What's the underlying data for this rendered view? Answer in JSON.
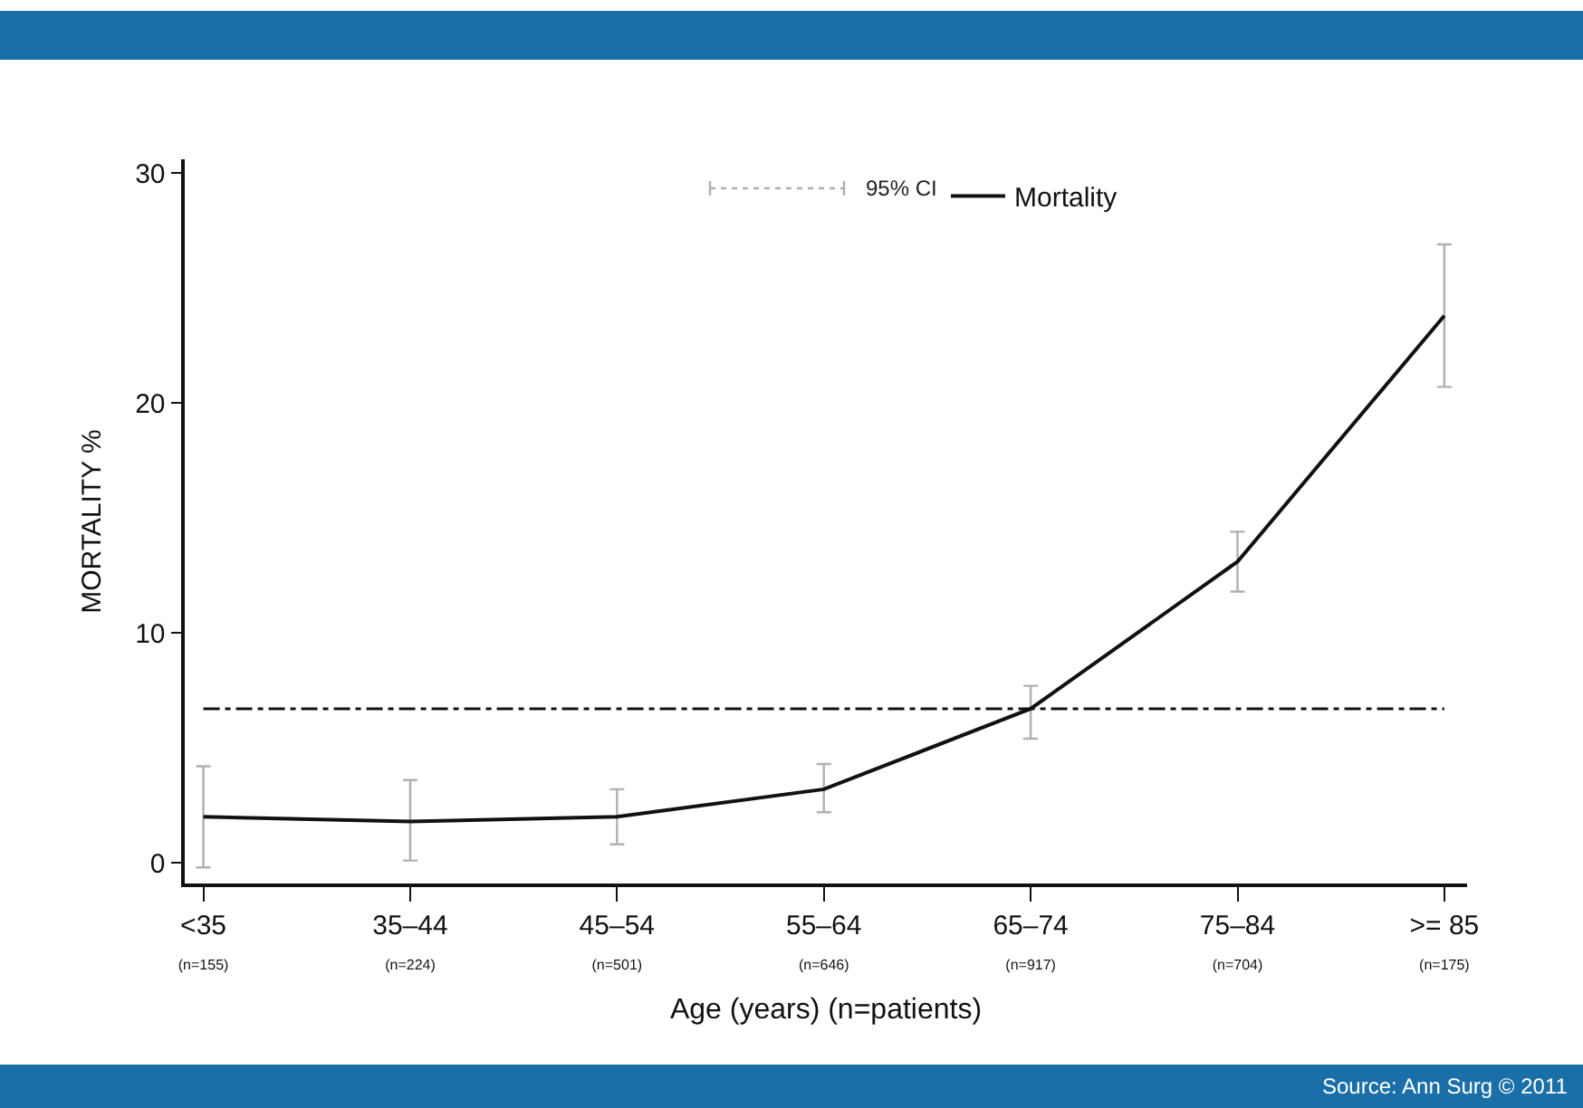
{
  "chart_data": {
    "type": "line",
    "xlabel": "Age (years) (n=patients)",
    "ylabel": "MORTALITY %",
    "categories": [
      "<35\n(n=155)",
      "35–44\n(n=224)",
      "45–54\n(n=501)",
      "55–64\n(n=646)",
      "65–74\n(n=917)",
      "75–84\n(n=704)",
      ">= 85\n(n=175)"
    ],
    "series": [
      {
        "name": "Mortality",
        "color": "#111111",
        "values": [
          2.0,
          1.8,
          2.0,
          3.2,
          6.7,
          13.1,
          23.8
        ],
        "errors": [
          [
            -0.2,
            4.2
          ],
          [
            0.1,
            3.6
          ],
          [
            0.8,
            3.2
          ],
          [
            2.2,
            4.3
          ],
          [
            5.4,
            7.7
          ],
          [
            11.8,
            14.4
          ],
          [
            20.7,
            26.9
          ]
        ]
      }
    ],
    "ylim": [
      -0.9,
      30.6
    ],
    "yticks": [
      0,
      10,
      20,
      30
    ],
    "ref_lines": [
      {
        "axis": "y",
        "value": 6.7,
        "color": "#111111",
        "line_style": "dashdot"
      }
    ],
    "annotations": [
      "95% CI",
      "Source: Ann Surg © 2011"
    ],
    "legend": "top",
    "marker": "none",
    "line_style": "solid"
  }
}
